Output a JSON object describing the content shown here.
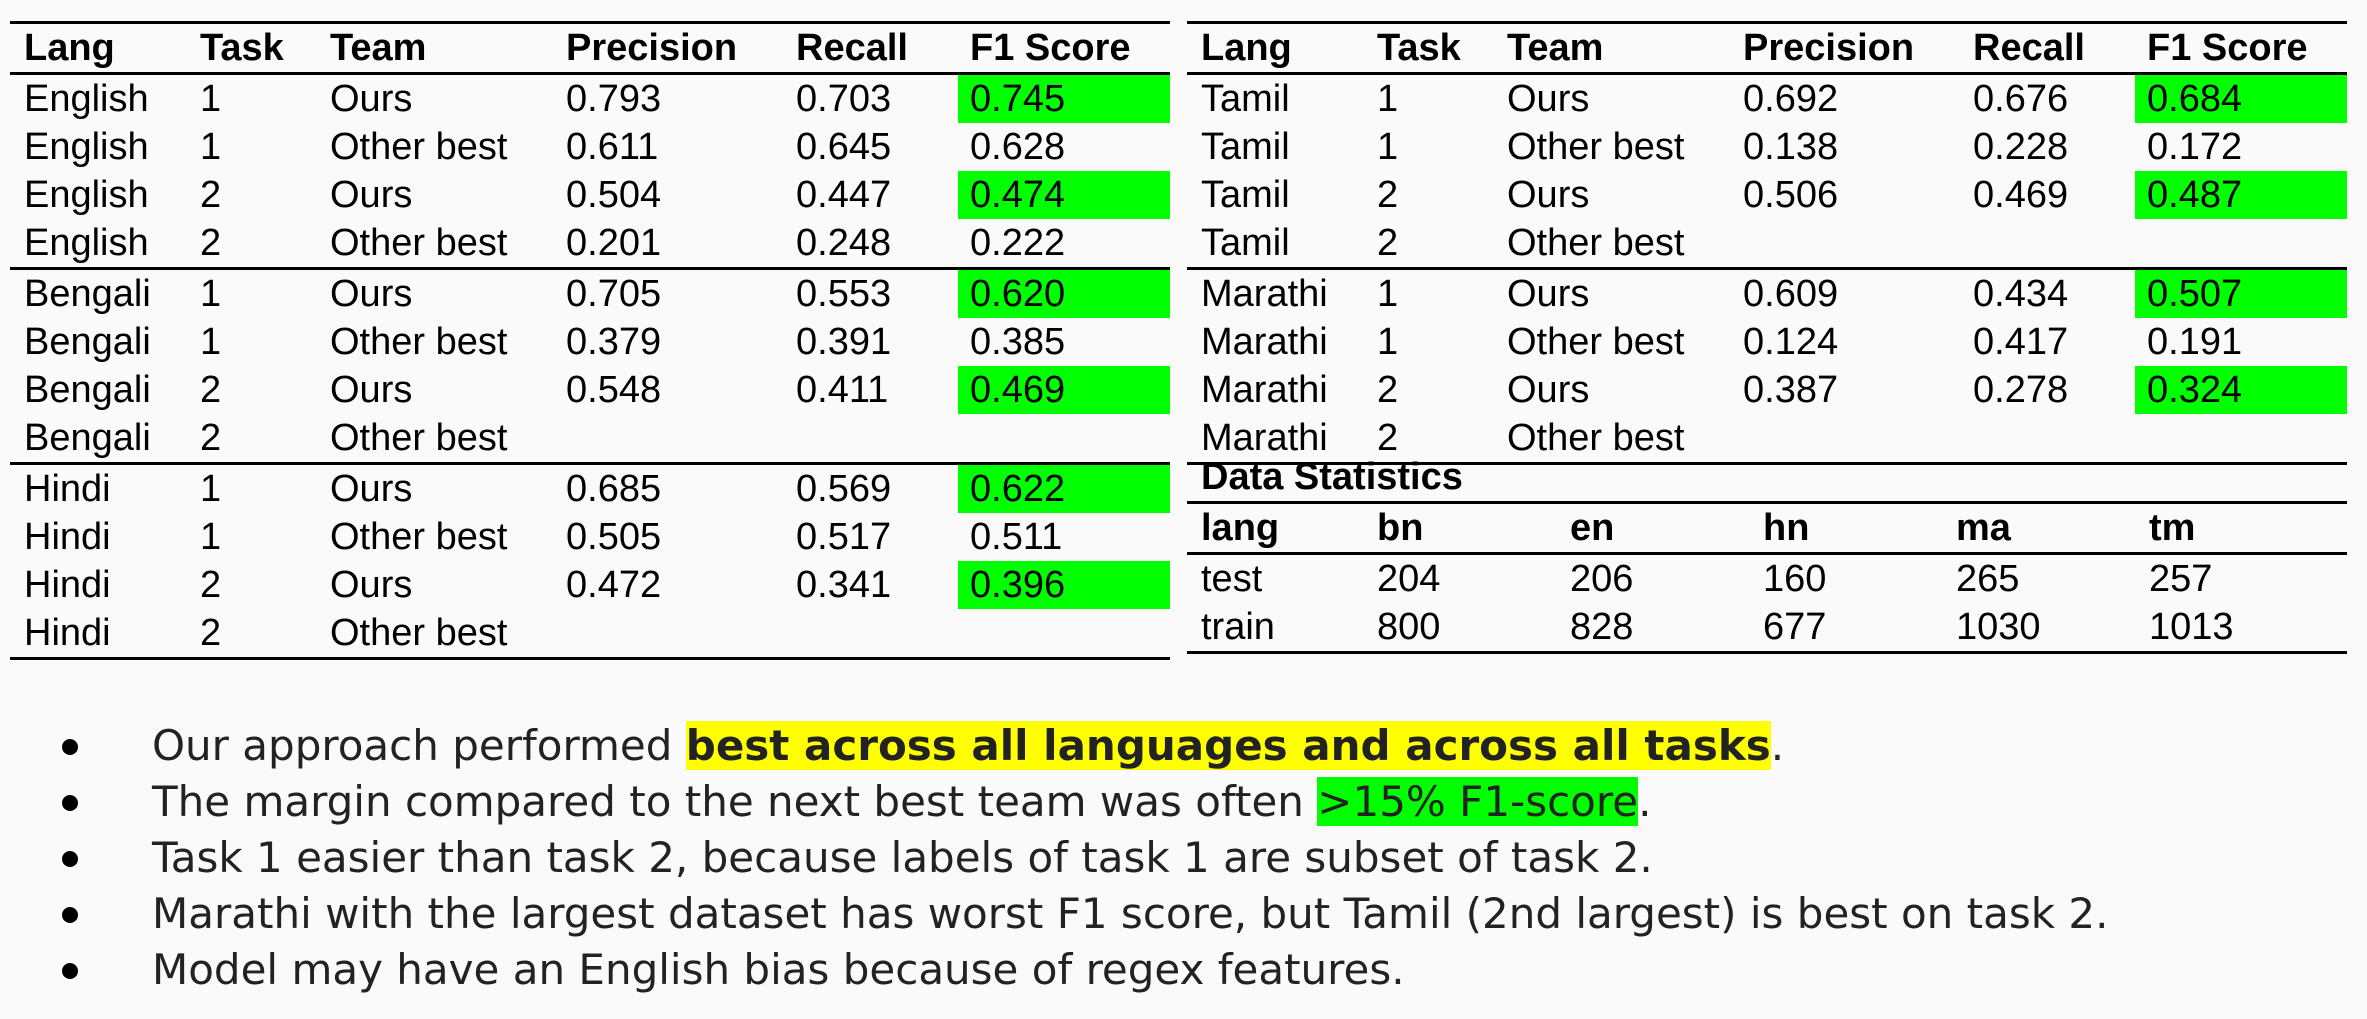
{
  "left_table": {
    "headers": [
      "Lang",
      "Task",
      "Team",
      "Precision",
      "Recall",
      "F1 Score"
    ],
    "rows": [
      {
        "lang": "English",
        "task": "1",
        "team": "Ours",
        "precision": "0.793",
        "recall": "0.703",
        "f1": "0.745",
        "best": true
      },
      {
        "lang": "English",
        "task": "1",
        "team": "Other best",
        "precision": "0.611",
        "recall": "0.645",
        "f1": "0.628",
        "best": false
      },
      {
        "lang": "English",
        "task": "2",
        "team": "Ours",
        "precision": "0.504",
        "recall": "0.447",
        "f1": "0.474",
        "best": true
      },
      {
        "lang": "English",
        "task": "2",
        "team": "Other best",
        "precision": "0.201",
        "recall": "0.248",
        "f1": "0.222",
        "best": false
      },
      {
        "lang": "Bengali",
        "task": "1",
        "team": "Ours",
        "precision": "0.705",
        "recall": "0.553",
        "f1": "0.620",
        "best": true
      },
      {
        "lang": "Bengali",
        "task": "1",
        "team": "Other best",
        "precision": "0.379",
        "recall": "0.391",
        "f1": "0.385",
        "best": false
      },
      {
        "lang": "Bengali",
        "task": "2",
        "team": "Ours",
        "precision": "0.548",
        "recall": "0.411",
        "f1": "0.469",
        "best": true
      },
      {
        "lang": "Bengali",
        "task": "2",
        "team": "Other best",
        "precision": "",
        "recall": "",
        "f1": "",
        "best": false
      },
      {
        "lang": "Hindi",
        "task": "1",
        "team": "Ours",
        "precision": "0.685",
        "recall": "0.569",
        "f1": "0.622",
        "best": true
      },
      {
        "lang": "Hindi",
        "task": "1",
        "team": "Other best",
        "precision": "0.505",
        "recall": "0.517",
        "f1": "0.511",
        "best": false
      },
      {
        "lang": "Hindi",
        "task": "2",
        "team": "Ours",
        "precision": "0.472",
        "recall": "0.341",
        "f1": "0.396",
        "best": true
      },
      {
        "lang": "Hindi",
        "task": "2",
        "team": "Other best",
        "precision": "",
        "recall": "",
        "f1": "",
        "best": false
      }
    ]
  },
  "right_table": {
    "headers": [
      "Lang",
      "Task",
      "Team",
      "Precision",
      "Recall",
      "F1 Score"
    ],
    "rows": [
      {
        "lang": "Tamil",
        "task": "1",
        "team": "Ours",
        "precision": "0.692",
        "recall": "0.676",
        "f1": "0.684",
        "best": true
      },
      {
        "lang": "Tamil",
        "task": "1",
        "team": "Other best",
        "precision": "0.138",
        "recall": "0.228",
        "f1": "0.172",
        "best": false
      },
      {
        "lang": "Tamil",
        "task": "2",
        "team": "Ours",
        "precision": "0.506",
        "recall": "0.469",
        "f1": "0.487",
        "best": true
      },
      {
        "lang": "Tamil",
        "task": "2",
        "team": "Other best",
        "precision": "",
        "recall": "",
        "f1": "",
        "best": false
      },
      {
        "lang": "Marathi",
        "task": "1",
        "team": "Ours",
        "precision": "0.609",
        "recall": "0.434",
        "f1": "0.507",
        "best": true
      },
      {
        "lang": "Marathi",
        "task": "1",
        "team": "Other best",
        "precision": "0.124",
        "recall": "0.417",
        "f1": "0.191",
        "best": false
      },
      {
        "lang": "Marathi",
        "task": "2",
        "team": "Ours",
        "precision": "0.387",
        "recall": "0.278",
        "f1": "0.324",
        "best": true
      },
      {
        "lang": "Marathi",
        "task": "2",
        "team": "Other best",
        "precision": "",
        "recall": "",
        "f1": "",
        "best": false
      }
    ]
  },
  "stats": {
    "title": "Data Statistics",
    "headers": [
      "lang",
      "bn",
      "en",
      "hn",
      "ma",
      "tm"
    ],
    "rows": [
      [
        "test",
        "204",
        "206",
        "160",
        "265",
        "257"
      ],
      [
        "train",
        "800",
        "828",
        "677",
        "1030",
        "1013"
      ]
    ]
  },
  "bullets": {
    "b1_prefix": "Our approach performed ",
    "b1_highlight": "best across all languages and across all tasks",
    "b1_suffix": ".",
    "b2_prefix": "The margin compared to the next best team was often ",
    "b2_highlight": ">15% F1-score",
    "b2_suffix": ".",
    "b3": "Task 1 easier than task 2, because labels of task 1 are subset of task 2.",
    "b4": "Marathi with the largest dataset has worst F1 score, but Tamil (2nd largest) is best on task 2.",
    "b5": "Model may have an English bias because of regex features."
  },
  "colors": {
    "best_highlight": "#00ff00",
    "text_highlight": "#ffff00"
  }
}
